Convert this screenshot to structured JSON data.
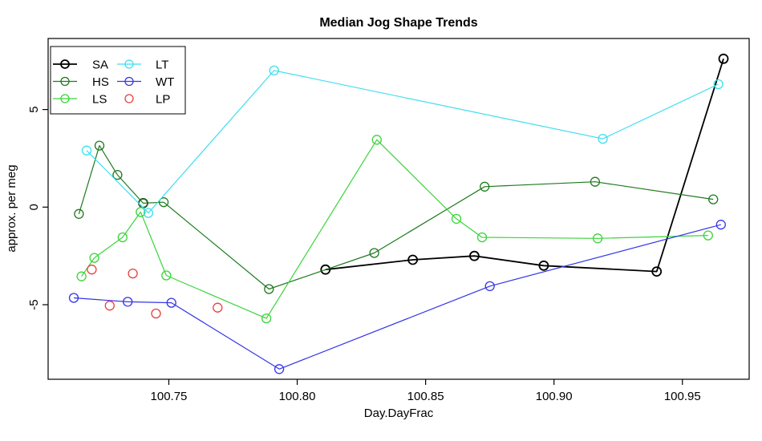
{
  "chart_data": {
    "type": "line",
    "title": "Median Jog Shape Trends",
    "xlabel": "Day.DayFrac",
    "ylabel": "approx. per meg",
    "xlim": [
      100.703,
      100.976
    ],
    "ylim": [
      -8.82,
      8.64
    ],
    "grid": false,
    "legend_position": "top-left",
    "x_ticks": [
      {
        "value": 100.75,
        "label": "100.75"
      },
      {
        "value": 100.8,
        "label": "100.80"
      },
      {
        "value": 100.85,
        "label": "100.85"
      },
      {
        "value": 100.9,
        "label": "100.90"
      },
      {
        "value": 100.95,
        "label": "100.95"
      }
    ],
    "y_ticks": [
      {
        "value": -5,
        "label": "-5"
      },
      {
        "value": 0,
        "label": "0"
      },
      {
        "value": 5,
        "label": "5"
      }
    ],
    "series": [
      {
        "name": "SA",
        "color": "#000000",
        "line": true,
        "line_width": 1.8,
        "marker": "open-circle",
        "points": [
          [
            100.811,
            -3.2
          ],
          [
            100.845,
            -2.7
          ],
          [
            100.869,
            -2.5
          ],
          [
            100.896,
            -3.0
          ],
          [
            100.94,
            -3.3
          ],
          [
            100.966,
            7.6
          ]
        ],
        "isolated_points": [
          [
            100.74,
            0.2
          ]
        ]
      },
      {
        "name": "HS",
        "color": "#1e7a1e",
        "line": true,
        "line_width": 1.2,
        "marker": "open-circle",
        "points": [
          [
            100.715,
            -0.35
          ],
          [
            100.723,
            3.15
          ],
          [
            100.73,
            1.65
          ],
          [
            100.74,
            0.2
          ],
          [
            100.748,
            0.25
          ],
          [
            100.789,
            -4.2
          ],
          [
            100.83,
            -2.35
          ],
          [
            100.873,
            1.05
          ],
          [
            100.916,
            1.3
          ],
          [
            100.962,
            0.4
          ]
        ],
        "isolated_points": []
      },
      {
        "name": "LS",
        "color": "#39d539",
        "line": true,
        "line_width": 1.2,
        "marker": "open-circle",
        "points": [
          [
            100.716,
            -3.55
          ],
          [
            100.721,
            -2.6
          ],
          [
            100.732,
            -1.55
          ],
          [
            100.739,
            -0.25
          ],
          [
            100.749,
            -3.5
          ],
          [
            100.788,
            -5.7
          ],
          [
            100.831,
            3.45
          ],
          [
            100.862,
            -0.6
          ],
          [
            100.872,
            -1.55
          ],
          [
            100.917,
            -1.6
          ],
          [
            100.96,
            -1.45
          ]
        ],
        "isolated_points": []
      },
      {
        "name": "LT",
        "color": "#3fdeee",
        "line": true,
        "line_width": 1.2,
        "marker": "open-circle",
        "points": [
          [
            100.718,
            2.9
          ],
          [
            100.742,
            -0.3
          ],
          [
            100.791,
            7.0
          ],
          [
            100.919,
            3.5
          ],
          [
            100.964,
            6.3
          ]
        ],
        "isolated_points": []
      },
      {
        "name": "WT",
        "color": "#3535e8",
        "line": true,
        "line_width": 1.2,
        "marker": "open-circle",
        "points": [
          [
            100.713,
            -4.65
          ],
          [
            100.734,
            -4.85
          ],
          [
            100.751,
            -4.9
          ],
          [
            100.793,
            -8.3
          ],
          [
            100.875,
            -4.05
          ],
          [
            100.965,
            -0.9
          ]
        ],
        "isolated_points": []
      },
      {
        "name": "LP",
        "color": "#e64040",
        "line": false,
        "line_width": 1.2,
        "marker": "open-circle",
        "points": [
          [
            100.72,
            -3.2
          ],
          [
            100.727,
            -5.05
          ],
          [
            100.736,
            -3.4
          ],
          [
            100.745,
            -5.45
          ],
          [
            100.769,
            -5.15
          ]
        ],
        "isolated_points": []
      }
    ],
    "legend": {
      "columns": [
        [
          "SA",
          "HS",
          "LS"
        ],
        [
          "LT",
          "WT",
          "LP"
        ]
      ]
    }
  }
}
